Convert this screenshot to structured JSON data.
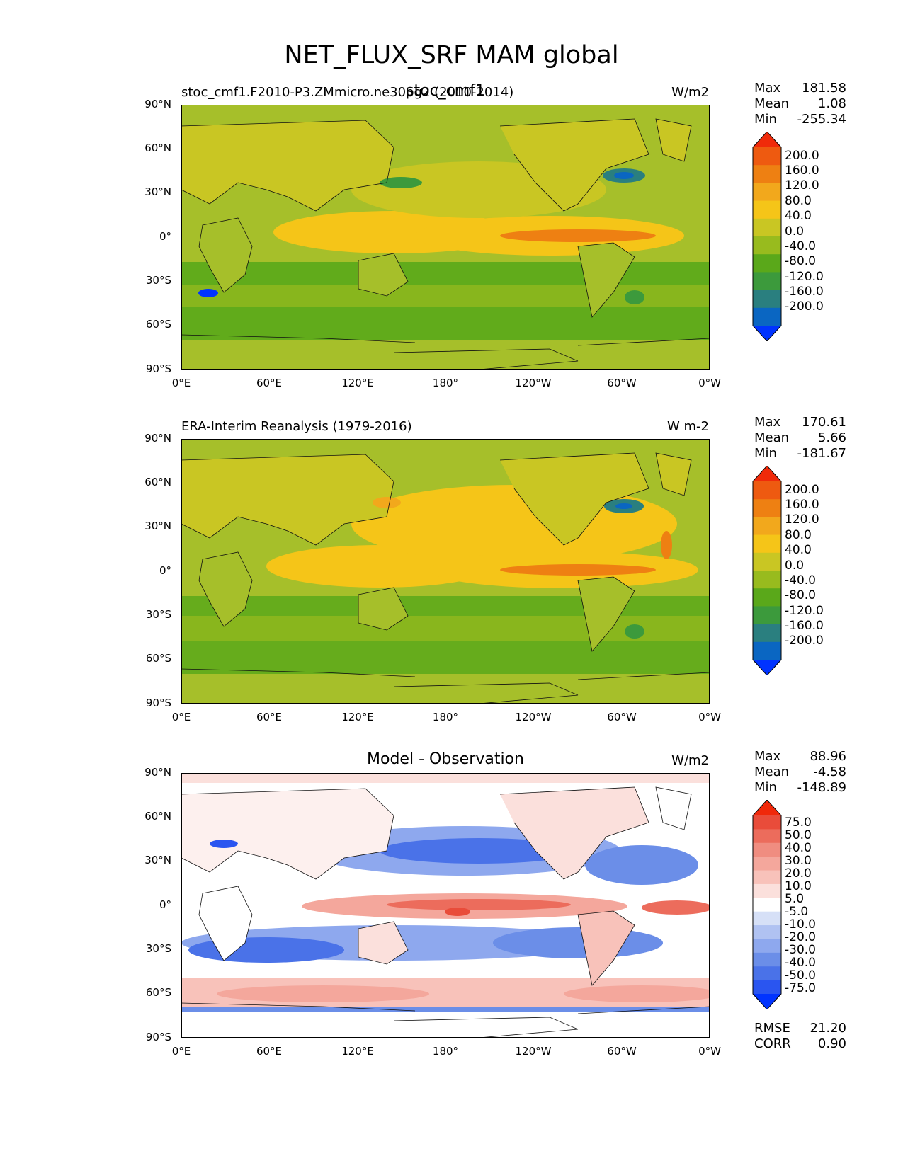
{
  "figure_title": "NET_FLUX_SRF MAM global",
  "colors": {
    "panel_base_abs": "#a6bf2a",
    "panel_base_diff": "#ffffff",
    "abs_scale": [
      "#0033ff",
      "#0a66c2",
      "#2a7f7f",
      "#3c9a3c",
      "#5aa81a",
      "#98bb1e",
      "#c9c623",
      "#f5c518",
      "#f2a81c",
      "#ee8012",
      "#ee5a10",
      "#f02a0a"
    ],
    "diff_scale": [
      "#0033ff",
      "#2a55f0",
      "#4a72e8",
      "#6b8ee8",
      "#8ea8ee",
      "#b0c2f2",
      "#d6e0f7",
      "#ffffff",
      "#fbe0dc",
      "#f8c2ba",
      "#f4a79c",
      "#f08d80",
      "#ec6c5c",
      "#e94c3a",
      "#f0280a"
    ]
  },
  "axes": {
    "y_ticks": [
      "90°N",
      "60°N",
      "30°N",
      "0°",
      "30°S",
      "60°S",
      "90°S"
    ],
    "x_ticks": [
      "0°E",
      "60°E",
      "120°E",
      "180°",
      "120°W",
      "60°W",
      "0°W"
    ]
  },
  "panels": [
    {
      "id": "test",
      "left_title": "stoc_cmf1.F2010-P3.ZMmicro.ne30pg2 (2010-2014)",
      "center_title": "stoc_cmf1",
      "units": "W/m2",
      "stats": {
        "max_label": "Max",
        "max": "181.58",
        "mean_label": "Mean",
        "mean": "1.08",
        "min_label": "Min",
        "min": "-255.34"
      },
      "colorbar": {
        "labels": [
          "200.0",
          "160.0",
          "120.0",
          "80.0",
          "40.0",
          "0.0",
          "-40.0",
          "-80.0",
          "-120.0",
          "-160.0",
          "-200.0"
        ]
      }
    },
    {
      "id": "reference",
      "left_title": "ERA-Interim Reanalysis (1979-2016)",
      "center_title": "",
      "units": "W m-2",
      "stats": {
        "max_label": "Max",
        "max": "170.61",
        "mean_label": "Mean",
        "mean": "5.66",
        "min_label": "Min",
        "min": "-181.67"
      },
      "colorbar": {
        "labels": [
          "200.0",
          "160.0",
          "120.0",
          "80.0",
          "40.0",
          "0.0",
          "-40.0",
          "-80.0",
          "-120.0",
          "-160.0",
          "-200.0"
        ]
      }
    },
    {
      "id": "difference",
      "left_title": "",
      "center_title": "Model - Observation",
      "units": "W/m2",
      "stats": {
        "max_label": "Max",
        "max": "88.96",
        "mean_label": "Mean",
        "mean": "-4.58",
        "min_label": "Min",
        "min": "-148.89"
      },
      "colorbar": {
        "labels": [
          "75.0",
          "50.0",
          "40.0",
          "30.0",
          "20.0",
          "10.0",
          "5.0",
          "-5.0",
          "-10.0",
          "-20.0",
          "-30.0",
          "-40.0",
          "-50.0",
          "-75.0"
        ]
      },
      "extra": {
        "rmse_label": "RMSE",
        "rmse": "21.20",
        "corr_label": "CORR",
        "corr": "0.90"
      }
    }
  ]
}
